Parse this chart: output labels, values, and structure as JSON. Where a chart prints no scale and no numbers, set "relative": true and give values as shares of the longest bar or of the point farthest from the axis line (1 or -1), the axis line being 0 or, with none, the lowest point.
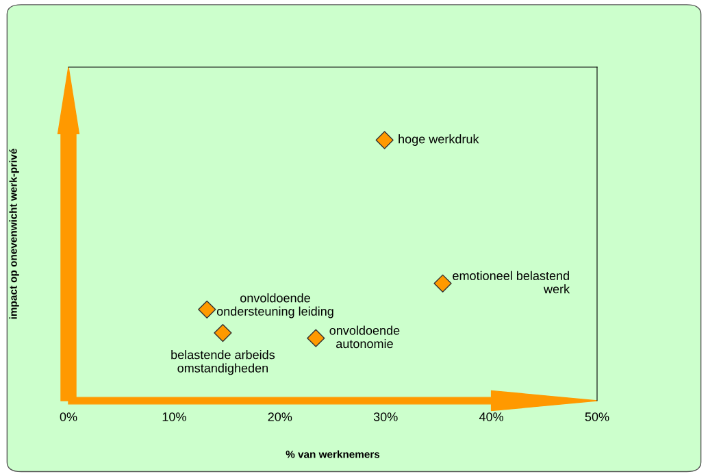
{
  "chart_data": {
    "type": "scatter",
    "xlabel": "% van werknemers",
    "ylabel": "impact op onevenwicht werk-privé",
    "relative": true,
    "xlim": [
      0,
      50
    ],
    "xticks": [
      {
        "value": 0,
        "label": "0%"
      },
      {
        "value": 10,
        "label": "10%"
      },
      {
        "value": 20,
        "label": "20%"
      },
      {
        "value": 30,
        "label": "30%"
      },
      {
        "value": 40,
        "label": "40%"
      },
      {
        "value": 50,
        "label": "50%"
      }
    ],
    "tick_labels": "x",
    "marker": "diamond",
    "series": [
      {
        "color": "#ff9900",
        "x": [
          29.9,
          35.4,
          13.1,
          14.6,
          23.4
        ],
        "values": [
          1,
          0.45,
          0.35,
          0.26,
          0.24
        ]
      }
    ],
    "annotations": [
      {
        "text": "hoge werkdruk",
        "x": 29.9,
        "y": 1
      },
      {
        "text": "emotioneel belastend\nwerk",
        "x": 35.4,
        "y": 0.45
      },
      {
        "text": "onvoldoende\nondersteuning leiding",
        "x": 13.1,
        "y": 0.35
      },
      {
        "text": "belastende arbeids\nomstandigheden",
        "x": 14.6,
        "y": 0.26
      },
      {
        "text": "onvoldoende\nautonomie",
        "x": 23.4,
        "y": 0.24
      }
    ]
  }
}
